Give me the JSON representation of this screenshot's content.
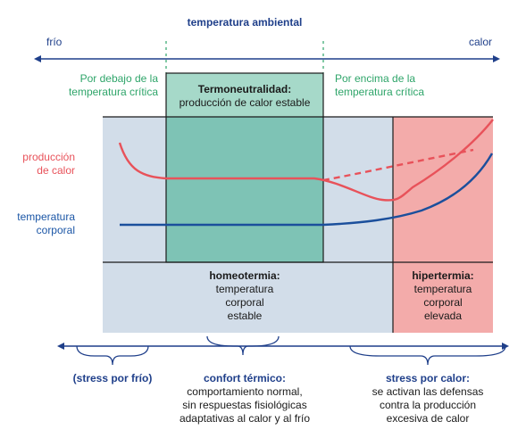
{
  "header": {
    "title": "temperatura ambiental",
    "left": "frío",
    "right": "calor"
  },
  "zones": {
    "below_critical": [
      "Por debajo de la",
      "temperatura crítica"
    ],
    "above_critical": [
      "Por encima de la",
      "temperatura crítica"
    ],
    "thermoneutral_title": "Termoneutralidad:",
    "thermoneutral_sub": "producción de calor estable"
  },
  "curves": {
    "heat_production": [
      "producción",
      "de calor"
    ],
    "body_temperature": [
      "temperatura",
      "corporal"
    ]
  },
  "states": {
    "homeothermy": {
      "title": "homeotermia:",
      "lines": [
        "temperatura",
        "corporal",
        "estable"
      ]
    },
    "hyperthermia": {
      "title": "hipertermia:",
      "lines": [
        "temperatura",
        "corporal",
        "elevada"
      ]
    }
  },
  "stress": {
    "cold": "(stress por frío)",
    "comfort": {
      "title": "confort térmico:",
      "lines": [
        "comportamiento normal,",
        "sin respuestas fisiológicas",
        "adaptativas al calor y al frío"
      ]
    },
    "heat": {
      "title": "stress por calor:",
      "lines": [
        "se activan las defensas",
        "contra la producción",
        "excesiva de calor"
      ]
    }
  },
  "colors": {
    "navy": "#1f3f8a",
    "panel_blue": "#d2dde9",
    "thermo_green": "#7ec3b5",
    "thermo_header": "#a6d9c9",
    "hyper_pink": "#f3abaa",
    "heat_line": "#e8525a",
    "body_line": "#1b4f9c",
    "label_green": "#2fa56a"
  }
}
